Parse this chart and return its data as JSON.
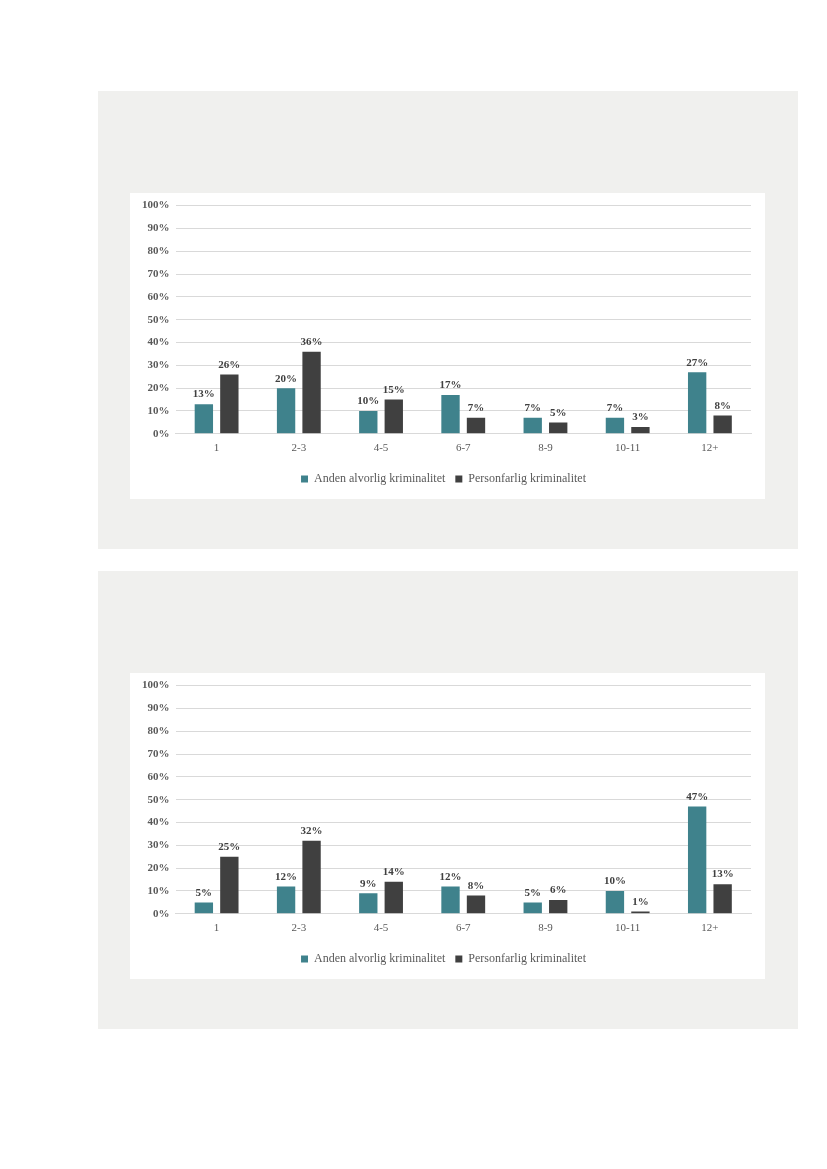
{
  "chart_data": [
    {
      "type": "bar",
      "categories": [
        "1",
        "2-3",
        "4-5",
        "6-7",
        "8-9",
        "10-11",
        "12+"
      ],
      "series": [
        {
          "name": "Anden alvorlig kriminalitet",
          "color": "#3f828c",
          "values": [
            13,
            20,
            10,
            17,
            7,
            7,
            27
          ],
          "value_labels": [
            "13%",
            "20%",
            "10%",
            "17%",
            "7%",
            "7%",
            "27%"
          ]
        },
        {
          "name": "Personfarlig kriminalitet",
          "color": "#404040",
          "values": [
            26,
            36,
            15,
            7,
            5,
            3,
            8
          ],
          "value_labels": [
            "26%",
            "36%",
            "15%",
            "7%",
            "5%",
            "3%",
            "8%"
          ]
        }
      ],
      "ylim": [
        0,
        100
      ],
      "yticks": [
        {
          "value": 0,
          "label": "0%"
        },
        {
          "value": 10,
          "label": "10%"
        },
        {
          "value": 20,
          "label": "20%"
        },
        {
          "value": 30,
          "label": "30%"
        },
        {
          "value": 40,
          "label": "40%"
        },
        {
          "value": 50,
          "label": "50%"
        },
        {
          "value": 60,
          "label": "60%"
        },
        {
          "value": 70,
          "label": "70%"
        },
        {
          "value": 80,
          "label": "80%"
        },
        {
          "value": 90,
          "label": "90%"
        },
        {
          "value": 100,
          "label": "100%"
        }
      ],
      "grid": "y",
      "legend": "bottom"
    },
    {
      "type": "bar",
      "categories": [
        "1",
        "2-3",
        "4-5",
        "6-7",
        "8-9",
        "10-11",
        "12+"
      ],
      "series": [
        {
          "name": "Anden alvorlig kriminalitet",
          "color": "#3f828c",
          "values": [
            5,
            12,
            9,
            12,
            5,
            10,
            47
          ],
          "value_labels": [
            "5%",
            "12%",
            "9%",
            "12%",
            "5%",
            "10%",
            "47%"
          ]
        },
        {
          "name": "Personfarlig kriminalitet",
          "color": "#404040",
          "values": [
            25,
            32,
            14,
            8,
            6,
            1,
            13
          ],
          "value_labels": [
            "25%",
            "32%",
            "14%",
            "8%",
            "6%",
            "1%",
            "13%"
          ]
        }
      ],
      "ylim": [
        0,
        100
      ],
      "yticks": [
        {
          "value": 0,
          "label": "0%"
        },
        {
          "value": 10,
          "label": "10%"
        },
        {
          "value": 20,
          "label": "20%"
        },
        {
          "value": 30,
          "label": "30%"
        },
        {
          "value": 40,
          "label": "40%"
        },
        {
          "value": 50,
          "label": "50%"
        },
        {
          "value": 60,
          "label": "60%"
        },
        {
          "value": 70,
          "label": "70%"
        },
        {
          "value": 80,
          "label": "80%"
        },
        {
          "value": 90,
          "label": "90%"
        },
        {
          "value": 100,
          "label": "100%"
        }
      ],
      "grid": "y",
      "legend": "bottom"
    }
  ]
}
